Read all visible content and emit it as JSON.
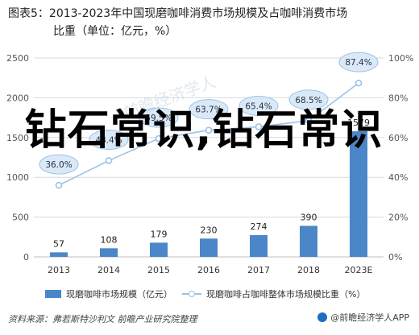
{
  "title": {
    "line1": "图表5：2013-2023年中国现磨咖啡消费市场规模及占咖啡消费市场",
    "line2": "比重（单位：亿元，%）"
  },
  "overlay_text": "钻石常识,钻石常识",
  "watermark_text": "前瞻经济学人",
  "colors": {
    "bar": "#4a86c8",
    "line": "#9cc2e8",
    "bubble": "#dbe9f7",
    "bubble_border": "#9cc2e8",
    "grid": "#d9d9d9",
    "axis_text": "#555555"
  },
  "chart_data": {
    "type": "bar",
    "categories": [
      "2013",
      "2014",
      "2015",
      "2016",
      "2017",
      "2018",
      "2023E"
    ],
    "series": [
      {
        "name": "现磨咖啡市场规模（亿元）",
        "type": "bar",
        "axis": "left",
        "values": [
          57,
          108,
          179,
          230,
          274,
          390,
          1579
        ],
        "labels": [
          "57",
          "108",
          "179",
          "230",
          "274",
          "390",
          "1579"
        ]
      },
      {
        "name": "现磨咖啡占咖啡整体市场规模比重（%）",
        "type": "line",
        "axis": "right",
        "values": [
          36.0,
          48.4,
          59.5,
          63.7,
          65.4,
          68.5,
          87.4
        ],
        "labels": [
          "36.0%",
          "48.4%",
          "59.5%",
          "63.7%",
          "65.4%",
          "68.5%",
          "87.4%"
        ]
      }
    ],
    "y_left": {
      "ylim": [
        0,
        2500
      ],
      "ticks": [
        0,
        500,
        1000,
        1500,
        2000,
        2500
      ],
      "tick_labels": [
        "0",
        "500",
        "1000",
        "1500",
        "2000",
        "2500"
      ]
    },
    "y_right": {
      "ylim": [
        0,
        100
      ],
      "ticks": [
        0,
        20,
        40,
        60,
        80,
        100
      ],
      "tick_labels": [
        "0%",
        "20%",
        "40%",
        "60%",
        "80%",
        "100%"
      ]
    },
    "grid": true,
    "legend_position": "bottom"
  },
  "legend": {
    "bar_label": "现磨咖啡市场规模（亿元）",
    "line_label": "现磨咖啡占咖啡整体市场规模比重（%）"
  },
  "source": "资料来源：弗若斯特沙利文 前瞻产业研究院整理",
  "brand": "@前瞻经济学人APP"
}
